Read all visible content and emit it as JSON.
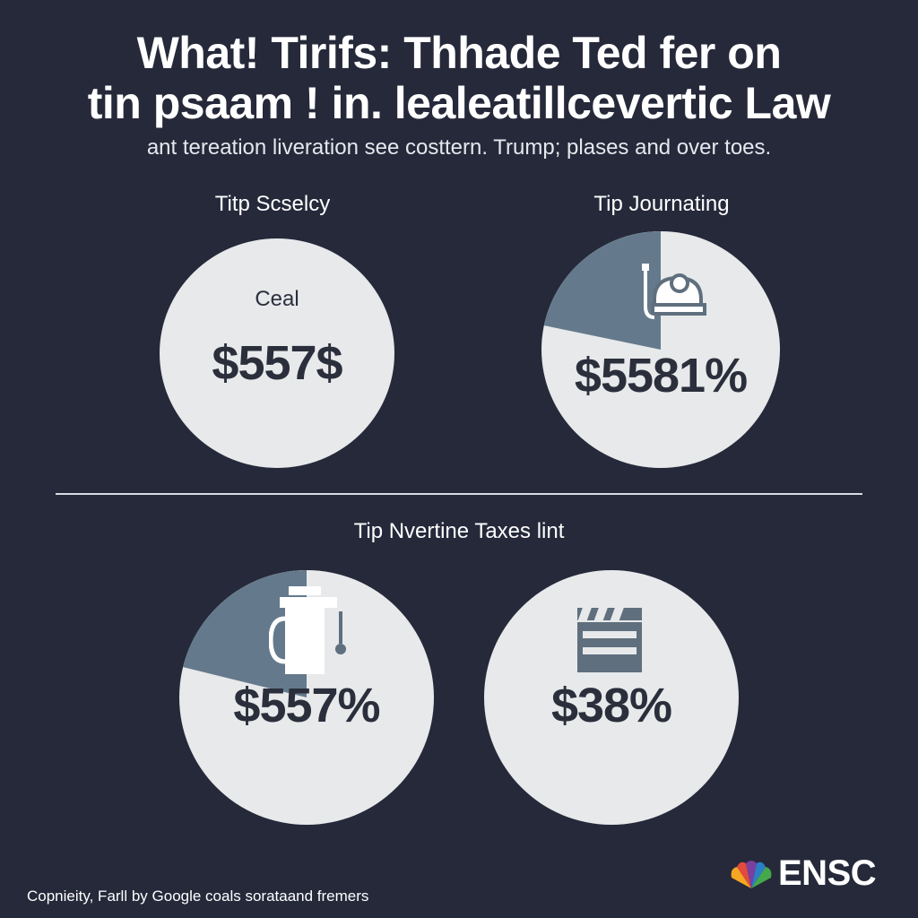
{
  "title": {
    "line1": "What! Tirifs: Thhade Ted fer on",
    "line2": "tin psaam ! in. lealeatillcevertic Law"
  },
  "subtitle": "ant tereation liveration see costtern. Trump; plases and over toes.",
  "panels": [
    {
      "label": "Titp Scselcy",
      "inner_label": "Ceal",
      "value": "$557$",
      "icon": "none"
    },
    {
      "label": "Tip Journating",
      "inner_label": "",
      "value": "$5581%",
      "icon": "pressure-gauge-icon"
    },
    {
      "label": "",
      "inner_label": "",
      "value": "$557%",
      "icon": "coffee-maker-icon"
    },
    {
      "label": "",
      "inner_label": "",
      "value": "$38%",
      "icon": "clapperboard-icon"
    }
  ],
  "section2_label": "Tip Nvertine Taxes lint",
  "footer": "Copnieity, Farll by Google coals sorataand fremers",
  "logo": {
    "text": "ENSC",
    "icon": "peacock-logo-icon"
  },
  "colors": {
    "background": "#25293a",
    "circle": "#e7e9ea",
    "wedge": "#647a8c",
    "text_dark": "#2b2f3c"
  }
}
